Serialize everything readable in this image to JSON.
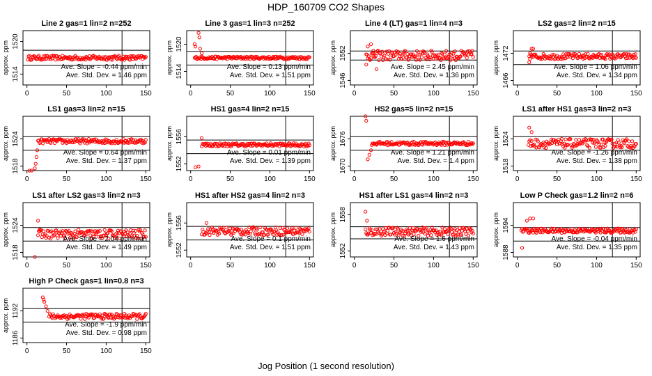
{
  "title": "HDP_160709  CO2 Shapes",
  "xlabel": "Jog Position (1 second resolution)",
  "colors": {
    "points": "#ff0000",
    "frame": "#000000",
    "background": "#ffffff"
  },
  "chart_data": [
    {
      "type": "scatter",
      "title": "Line 2 gas=1 lin=2 n=252",
      "ylabel": "approx. ppm",
      "xlim": [
        -5,
        155
      ],
      "ylim": [
        1512,
        1522
      ],
      "x_ticks": [
        0,
        50,
        100,
        150
      ],
      "y_ticks": [
        1514,
        1520
      ],
      "hlines": [
        1518.4,
        1515.6
      ],
      "vline": 120,
      "slope": "Ave. Slope = -0.44  ppm/min",
      "std": "Ave. Std. Dev. =  1.46  ppm",
      "series": [
        {
          "x_start": 1,
          "x_end": 150,
          "base": 1517,
          "noise": 0.4,
          "spikes": []
        }
      ]
    },
    {
      "type": "scatter",
      "title": "Line 3 gas=1 lin=3 n=252",
      "ylabel": "approx. ppm",
      "xlim": [
        -5,
        155
      ],
      "ylim": [
        1511,
        1523
      ],
      "x_ticks": [
        0,
        50,
        100,
        150
      ],
      "y_ticks": [
        1514,
        1520
      ],
      "hlines": [
        1518.4,
        1515.4
      ],
      "vline": 120,
      "slope": "Ave. Slope = 0.13  ppm/min",
      "std": "Ave. Std. Dev. = 1.51  ppm",
      "series": [
        {
          "x_start": 5,
          "x_end": 150,
          "base": 1517,
          "noise": 0.3,
          "spikes": [
            [
              5,
              1520
            ],
            [
              6,
              1519.5
            ],
            [
              10,
              1522.5
            ],
            [
              11,
              1521.5
            ],
            [
              12,
              1519
            ],
            [
              14,
              1518
            ]
          ]
        }
      ]
    },
    {
      "type": "scatter",
      "title": "Line 4 (LT) gas=1 lin=4 n=3",
      "ylabel": "approx. ppm",
      "xlim": [
        -5,
        155
      ],
      "ylim": [
        1545,
        1557
      ],
      "x_ticks": [
        0,
        50,
        100,
        150
      ],
      "y_ticks": [
        1546,
        1552
      ],
      "hlines": [
        1552.5,
        1550.5
      ],
      "vline": 120,
      "slope": "Ave. Slope = 2.45  ppm/min",
      "std": "Ave. Std. Dev. = 1.36  ppm",
      "series": [
        {
          "x_start": 15,
          "x_end": 150,
          "base": 1551.5,
          "noise": 1.1,
          "spikes": [
            [
              15,
              1549.5
            ],
            [
              17,
              1553.5
            ],
            [
              21,
              1554
            ],
            [
              24,
              1552
            ],
            [
              28,
              1548.5
            ]
          ]
        }
      ]
    },
    {
      "type": "scatter",
      "title": "LS2 gas=2 lin=2 n=15",
      "ylabel": "approx. ppm",
      "xlim": [
        -5,
        155
      ],
      "ylim": [
        1465,
        1477
      ],
      "x_ticks": [
        0,
        50,
        100,
        150
      ],
      "y_ticks": [
        1466,
        1472
      ],
      "hlines": [
        1472.5,
        1469.5
      ],
      "vline": 120,
      "slope": "Ave. Slope = 1.06  ppm/min",
      "std": "Ave. Std. Dev. = 1.34  ppm",
      "series": [
        {
          "x_start": 15,
          "x_end": 150,
          "base": 1471.3,
          "noise": 0.6,
          "spikes": [
            [
              15,
              1470
            ],
            [
              16,
              1472
            ],
            [
              18,
              1473
            ],
            [
              20,
              1473
            ]
          ]
        }
      ]
    },
    {
      "type": "scatter",
      "title": "LS1 gas=3 lin=2 n=15",
      "ylabel": "approx. ppm",
      "xlim": [
        -5,
        155
      ],
      "ylim": [
        1517,
        1529
      ],
      "x_ticks": [
        0,
        50,
        100,
        150
      ],
      "y_ticks": [
        1518,
        1524
      ],
      "hlines": [
        1524.5,
        1521.5
      ],
      "vline": 120,
      "slope": "Ave. Slope = 0.64  ppm/min",
      "std": "Ave. Std. Dev. = 1.37  ppm",
      "series": [
        {
          "x_start": 14,
          "x_end": 150,
          "base": 1523.5,
          "noise": 0.5,
          "spikes": [
            [
              3,
              1517
            ],
            [
              6,
              1517
            ],
            [
              10,
              1517.5
            ],
            [
              11,
              1518.5
            ],
            [
              12,
              1520
            ],
            [
              13,
              1521.5
            ]
          ]
        }
      ]
    },
    {
      "type": "scatter",
      "title": "HS1 gas=4 lin=2 n=15",
      "ylabel": "approx. ppm",
      "xlim": [
        -5,
        155
      ],
      "ylim": [
        1551,
        1559
      ],
      "x_ticks": [
        0,
        50,
        100,
        150
      ],
      "y_ticks": [
        1552,
        1556
      ],
      "hlines": [
        1555.5,
        1553.5
      ],
      "vline": 120,
      "slope": "Ave. Slope = 0.01  ppm/min",
      "std": "Ave. Std. Dev. = 1.39  ppm",
      "series": [
        {
          "x_start": 14,
          "x_end": 150,
          "base": 1554.8,
          "noise": 0.25,
          "spikes": [
            [
              6,
              1551.5
            ],
            [
              10,
              1551.6
            ],
            [
              14,
              1555.8
            ]
          ]
        }
      ]
    },
    {
      "type": "scatter",
      "title": "HS2 gas=5 lin=2 n=15",
      "ylabel": "approx. ppm",
      "xlim": [
        -5,
        155
      ],
      "ylim": [
        1669,
        1681
      ],
      "x_ticks": [
        0,
        50,
        100,
        150
      ],
      "y_ticks": [
        1670,
        1676
      ],
      "hlines": [
        1676.5,
        1673.5
      ],
      "vline": 120,
      "slope": "Ave. Slope = 1.21  ppm/min",
      "std": "Ave. Std. Dev. = 1.4  ppm",
      "series": [
        {
          "x_start": 22,
          "x_end": 150,
          "base": 1675,
          "noise": 0.4,
          "spikes": [
            [
              14,
              1681
            ],
            [
              15,
              1680
            ],
            [
              17,
              1671.5
            ],
            [
              19,
              1672.5
            ],
            [
              21,
              1673.5
            ]
          ]
        }
      ]
    },
    {
      "type": "scatter",
      "title": "LS1 after HS1 gas=3 lin=2 n=3",
      "ylabel": "approx. ppm",
      "xlim": [
        -5,
        155
      ],
      "ylim": [
        1517,
        1529
      ],
      "x_ticks": [
        0,
        50,
        100,
        150
      ],
      "y_ticks": [
        1518,
        1524
      ],
      "hlines": [
        1524.5,
        1521.5
      ],
      "vline": 120,
      "slope": "Ave. Slope = -1.26  ppm/min",
      "std": "Ave. Std. Dev. = 1.38  ppm",
      "series": [
        {
          "x_start": 14,
          "x_end": 150,
          "base": 1523,
          "noise": 1.0,
          "spikes": [
            [
              15,
              1526.5
            ],
            [
              18,
              1525.5
            ]
          ]
        }
      ]
    },
    {
      "type": "scatter",
      "title": "LS1 after LS2 gas=3 lin=2 n=3",
      "ylabel": "approx. ppm",
      "xlim": [
        -5,
        155
      ],
      "ylim": [
        1517,
        1529
      ],
      "x_ticks": [
        0,
        50,
        100,
        150
      ],
      "y_ticks": [
        1518,
        1524
      ],
      "hlines": [
        1523.5,
        1520.5
      ],
      "vline": 120,
      "slope": "Ave. Slope = 2.04  ppm/min",
      "std": "Ave. Std. Dev. = 1.49  ppm",
      "series": [
        {
          "x_start": 14,
          "x_end": 150,
          "base": 1522,
          "noise": 1.0,
          "spikes": [
            [
              14,
              1525
            ],
            [
              16,
              1523
            ],
            [
              10,
              1517
            ]
          ]
        }
      ]
    },
    {
      "type": "scatter",
      "title": "HS1 after HS2 gas=4 lin=2 n=3",
      "ylabel": "approx. ppm",
      "xlim": [
        -5,
        155
      ],
      "ylim": [
        1551,
        1559
      ],
      "x_ticks": [
        0,
        50,
        100,
        150
      ],
      "y_ticks": [
        1552,
        1556
      ],
      "hlines": [
        1555.5,
        1553.5
      ],
      "vline": 120,
      "slope": "Ave. Slope = 0.1  ppm/min",
      "std": "Ave. Std. Dev. = 1.51  ppm",
      "series": [
        {
          "x_start": 14,
          "x_end": 150,
          "base": 1554.8,
          "noise": 0.6,
          "spikes": [
            [
              20,
              1556
            ]
          ]
        }
      ]
    },
    {
      "type": "scatter",
      "title": "HS1 after LS1 gas=4 lin=2 n=3",
      "ylabel": "approx. ppm",
      "xlim": [
        -5,
        155
      ],
      "ylim": [
        1551,
        1560
      ],
      "x_ticks": [
        0,
        50,
        100,
        150
      ],
      "y_ticks": [
        1552,
        1558
      ],
      "hlines": [
        1556,
        1554
      ],
      "vline": 120,
      "slope": "Ave. Slope = 1.6  ppm/min",
      "std": "Ave. Std. Dev. = 1.43  ppm",
      "series": [
        {
          "x_start": 14,
          "x_end": 150,
          "base": 1555.2,
          "noise": 0.7,
          "spikes": [
            [
              14,
              1558.5
            ],
            [
              16,
              1557
            ]
          ]
        }
      ]
    },
    {
      "type": "scatter",
      "title": "Low P Check gas=1.2 lin=2 n=6",
      "ylabel": "approx. ppm",
      "xlim": [
        -5,
        155
      ],
      "ylim": [
        1587,
        1599
      ],
      "x_ticks": [
        0,
        50,
        100,
        150
      ],
      "y_ticks": [
        1588,
        1594
      ],
      "hlines": [
        1593.5,
        1590.5
      ],
      "vline": 120,
      "slope": "Ave. Slope = -0.04  ppm/min",
      "std": "Ave. Std. Dev. = 1.35  ppm",
      "series": [
        {
          "x_start": 5,
          "x_end": 150,
          "base": 1592.8,
          "noise": 0.5,
          "spikes": [
            [
              6,
              1589
            ],
            [
              12,
              1595
            ],
            [
              16,
              1595.5
            ],
            [
              20,
              1595.5
            ]
          ]
        }
      ]
    },
    {
      "type": "scatter",
      "title": "High P Check gas=1 lin=0.8 n=3",
      "ylabel": "approx. ppm",
      "xlim": [
        -5,
        155
      ],
      "ylim": [
        1185,
        1197
      ],
      "x_ticks": [
        0,
        50,
        100,
        150
      ],
      "y_ticks": [
        1186,
        1192
      ],
      "hlines": [
        1192.5,
        1189.5
      ],
      "vline": 120,
      "slope": "Ave. Slope = -1.9  ppm/min",
      "std": "Ave. Std. Dev. = 0.98  ppm",
      "series": [
        {
          "x_start": 28,
          "x_end": 150,
          "base": 1190.8,
          "noise": 0.6,
          "spikes": [
            [
              20,
              1195
            ],
            [
              21,
              1194.5
            ],
            [
              22,
              1194
            ],
            [
              24,
              1193
            ],
            [
              26,
              1192
            ]
          ]
        }
      ]
    }
  ]
}
